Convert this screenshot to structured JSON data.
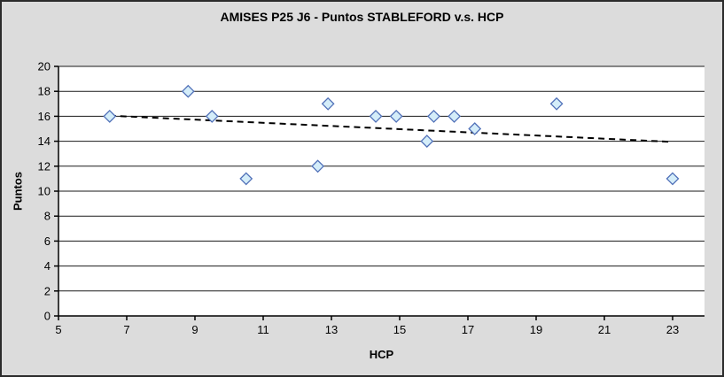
{
  "window": {
    "background_color": "#dcdcdc",
    "border_color": "#2b2b2b"
  },
  "chart_data": {
    "type": "scatter",
    "title": "AMISES P25 J6 - Puntos STABLEFORD v.s. HCP",
    "xlabel": "HCP",
    "ylabel": "Puntos",
    "xlim": [
      5,
      24
    ],
    "ylim": [
      0,
      20
    ],
    "x_ticks": [
      5,
      7,
      9,
      11,
      13,
      15,
      17,
      19,
      21,
      23
    ],
    "y_ticks": [
      0,
      2,
      4,
      6,
      8,
      10,
      12,
      14,
      16,
      18,
      20
    ],
    "grid": "horizontal",
    "legend_position": "none",
    "series": [
      {
        "marker": "diamond",
        "points": [
          [
            6.5,
            16
          ],
          [
            8.8,
            18
          ],
          [
            9.5,
            16
          ],
          [
            10.5,
            11
          ],
          [
            12.6,
            12
          ],
          [
            12.9,
            17
          ],
          [
            14.3,
            16
          ],
          [
            14.9,
            16
          ],
          [
            15.8,
            14
          ],
          [
            16.0,
            16
          ],
          [
            16.6,
            16
          ],
          [
            17.2,
            15
          ],
          [
            19.6,
            17
          ],
          [
            23.0,
            11
          ]
        ]
      }
    ],
    "trendline": {
      "style": "dashed",
      "color": "#000000",
      "start": {
        "x": 6.5,
        "y": 16.05
      },
      "end": {
        "x": 23.0,
        "y": 13.95
      }
    },
    "colors": {
      "marker_fill": "#d4edf9",
      "marker_stroke": "#5070b8",
      "plot_background": "#ffffff",
      "gridline": "#1a1a1a",
      "axis": "#000000",
      "text": "#000000"
    }
  }
}
